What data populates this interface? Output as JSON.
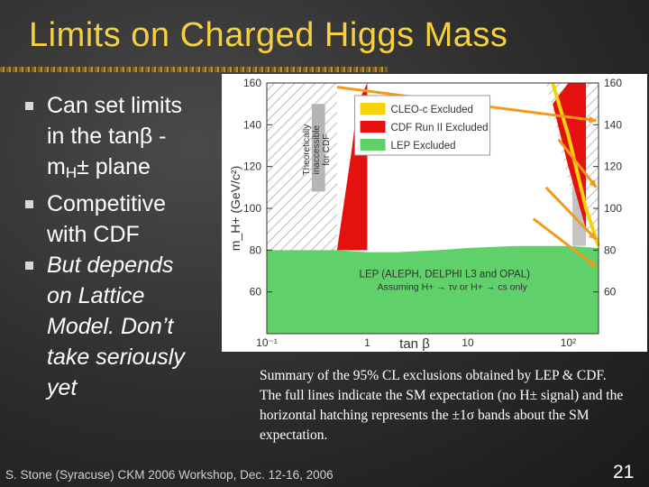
{
  "slide": {
    "title": "Limits on Charged Higgs Mass",
    "bullets": [
      {
        "lines": [
          "Can set limits",
          "in the tanβ -",
          "m",
          "H",
          "± plane"
        ]
      },
      {
        "lines": [
          "Competitive",
          "with CDF"
        ]
      },
      {
        "lines": [
          "But depends",
          "on Lattice",
          "Model. Don’t",
          "take seriously",
          "yet"
        ]
      }
    ],
    "caption": "Summary of the 95% CL exclusions obtained by LEP & CDF. The full lines indicate the SM expectation (no H± signal) and the horizontal hatching represents the ±1σ bands about the SM expectation.",
    "footer": "S. Stone (Syracuse) CKM 2006 Workshop, Dec. 12-16, 2006",
    "page_number": "21"
  },
  "chart_data": {
    "type": "area",
    "xlabel": "tan β",
    "ylabel": "m_H+ (GeV/c²)",
    "xscale": "log",
    "xlim": [
      0.1,
      200
    ],
    "ylim": [
      40,
      160
    ],
    "y_ticks": [
      "60",
      "80",
      "100",
      "120",
      "140",
      "160"
    ],
    "x_ticks": [
      "10⁻¹",
      "1",
      "10",
      "10²"
    ],
    "legend": {
      "placement": "top-center",
      "entries": [
        {
          "name": "CLEO-c Excluded",
          "color": "#f5d20a"
        },
        {
          "name": "CDF Run II Excluded",
          "color": "#e4110f"
        },
        {
          "name": "LEP Excluded",
          "color": "#5fd06a"
        }
      ]
    },
    "annotations": [
      "Theoretically inaccessible for CDF",
      "LEP (ALEPH, DELPHI L3 and OPAL)",
      "Assuming H+ → τν or H+ → cs only"
    ],
    "series": [
      {
        "name": "LEP Excluded",
        "x": [
          0.1,
          0.5,
          1,
          2,
          5,
          10,
          30,
          100,
          200
        ],
        "y": [
          80,
          80,
          79,
          79,
          80,
          81,
          82,
          82,
          81
        ]
      },
      {
        "name": "CDF Run II Excluded",
        "x": [
          0.5,
          0.7,
          0.8,
          1.0,
          50,
          70,
          100,
          150
        ],
        "y": [
          80,
          128,
          150,
          160,
          160,
          150,
          120,
          90
        ]
      },
      {
        "name": "CLEO-c Excluded",
        "x": [
          70,
          100,
          150,
          200
        ],
        "y": [
          160,
          135,
          100,
          82
        ]
      }
    ],
    "grid": false
  }
}
